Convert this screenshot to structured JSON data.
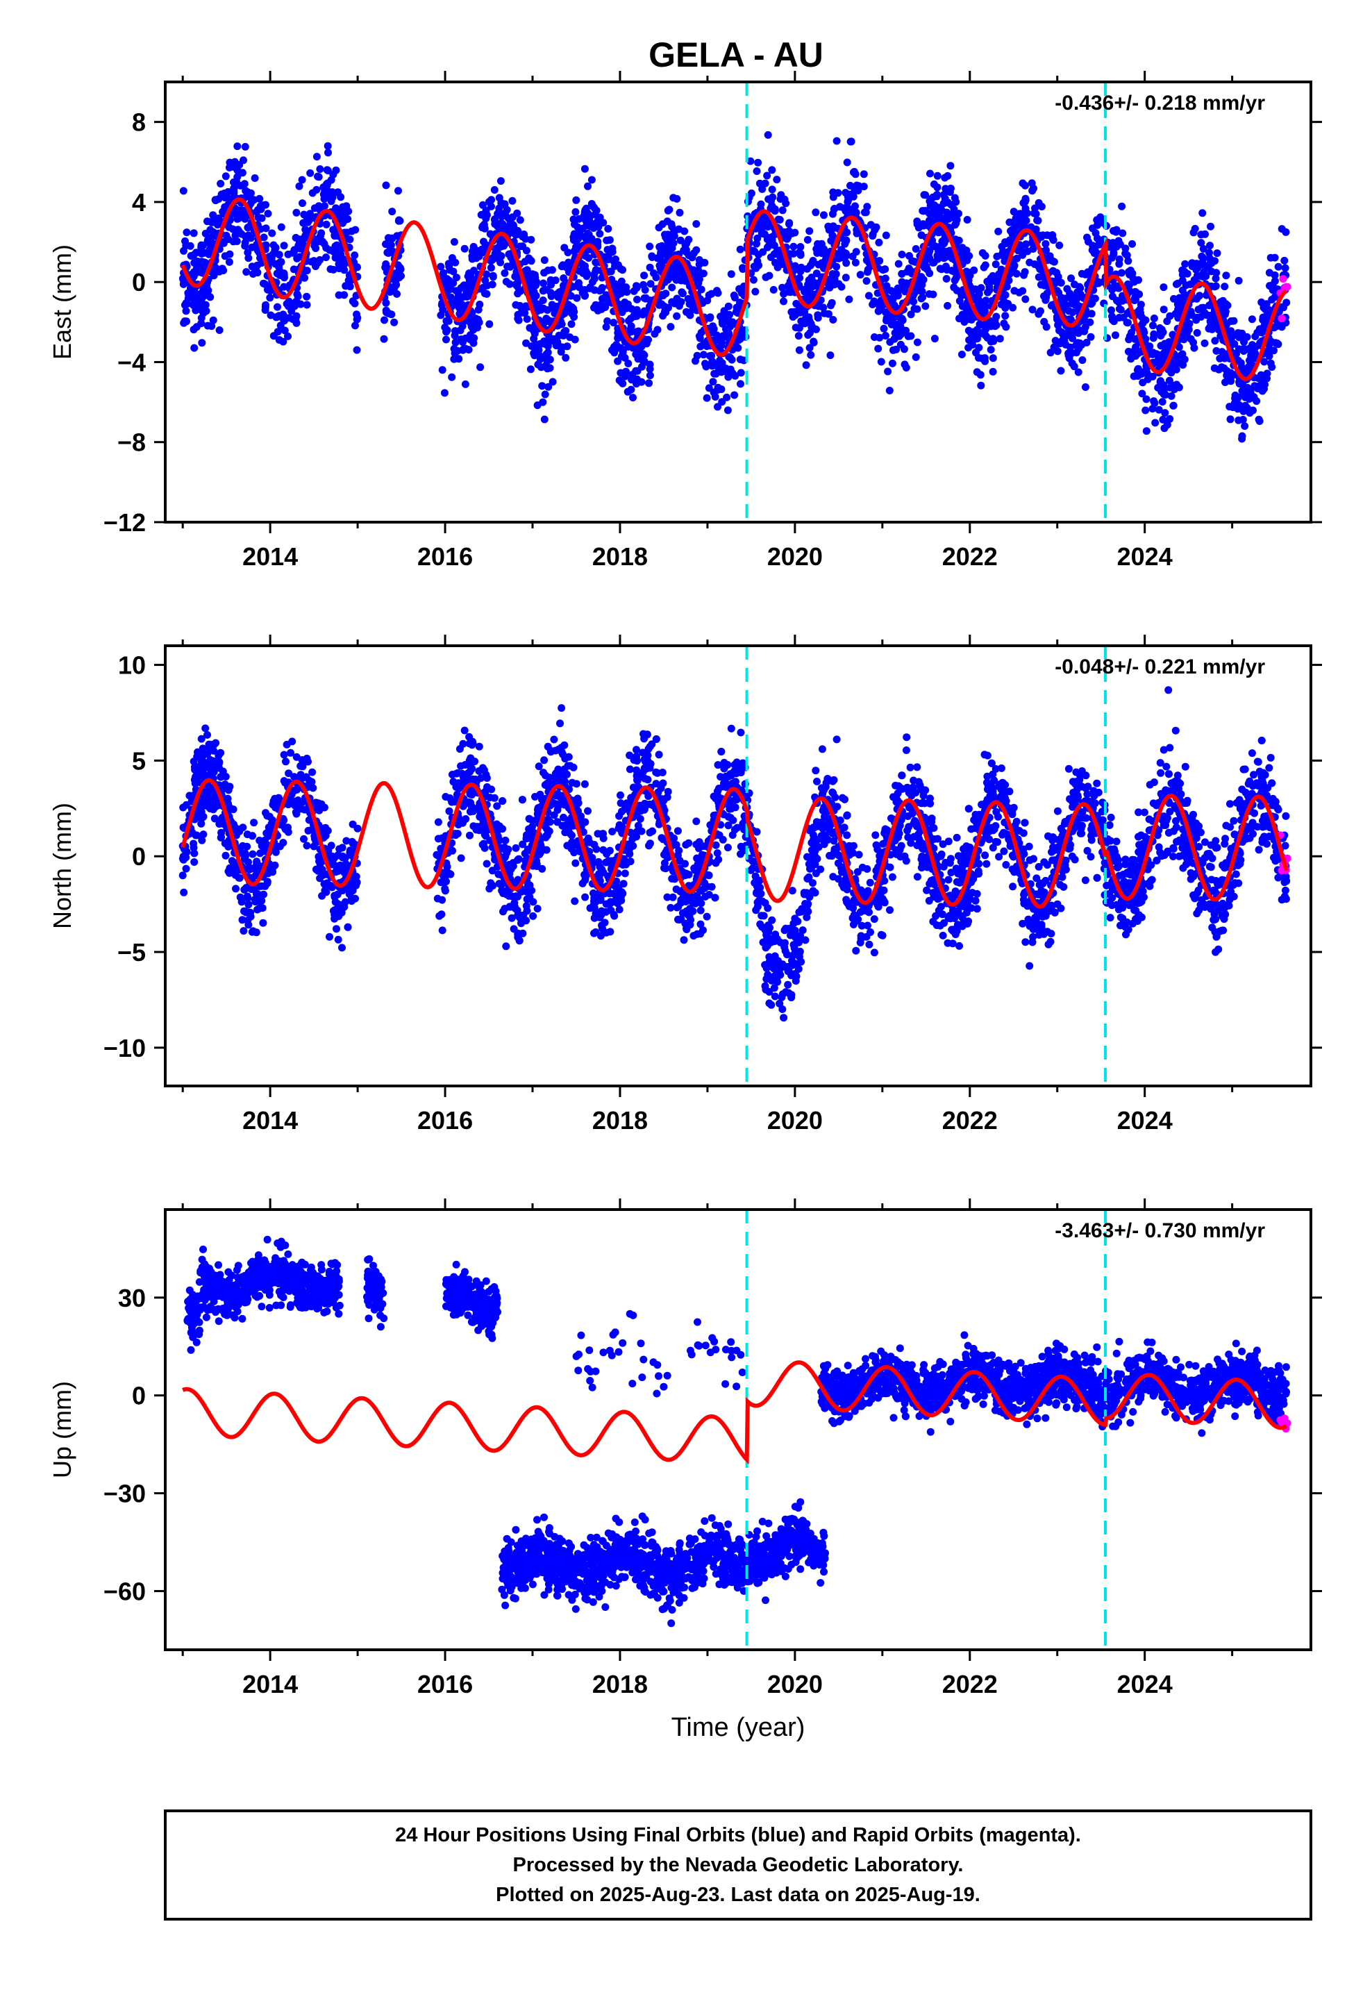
{
  "title": "GELA - AU",
  "footer": {
    "lines": [
      "24 Hour Positions Using Final Orbits (blue) and Rapid Orbits (magenta).",
      "Processed by the Nevada Geodetic Laboratory.",
      "Plotted on 2025-Aug-23. Last data on 2025-Aug-19."
    ]
  },
  "colors": {
    "final_orbits": "#0000ff",
    "rapid_orbits": "#ff00ff",
    "model": "#ff0000",
    "offsets": "#00e5e5",
    "axes": "#000000"
  },
  "chart_data": [
    {
      "type": "scatter",
      "component": "East",
      "ylabel": "East (mm)",
      "xlabel": "",
      "rate_label": "-0.436+/- 0.218 mm/yr",
      "xlim": [
        2012.8,
        2025.9
      ],
      "ylim": [
        -12,
        10
      ],
      "xticks": [
        2014,
        2016,
        2018,
        2020,
        2022,
        2024
      ],
      "yticks": [
        -12,
        -8,
        -4,
        0,
        4,
        8
      ],
      "offsets": [
        2019.45,
        2023.55
      ],
      "data_span": [
        2013.0,
        2025.62
      ],
      "rapid_span": [
        2025.55,
        2025.63
      ],
      "gaps": [
        [
          2015.0,
          2015.3
        ],
        [
          2015.5,
          2015.95
        ]
      ],
      "model": {
        "annual_amp": 2.3,
        "annual_phase": 2013.65,
        "segments": [
          {
            "x0": 2013.0,
            "x1": 2019.45,
            "v0": 2.2,
            "v1": -1.5
          },
          {
            "x0": 2019.45,
            "x1": 2023.55,
            "v0": 1.3,
            "v1": 0.0
          },
          {
            "x0": 2023.55,
            "x1": 2025.62,
            "v0": -2.0,
            "v1": -2.7
          }
        ]
      },
      "scatter_sd": 1.4
    },
    {
      "type": "scatter",
      "component": "North",
      "ylabel": "North (mm)",
      "xlabel": "",
      "rate_label": "-0.048+/- 0.221 mm/yr",
      "xlim": [
        2012.8,
        2025.9
      ],
      "ylim": [
        -12,
        11
      ],
      "xticks": [
        2014,
        2016,
        2018,
        2020,
        2022,
        2024
      ],
      "yticks": [
        -10,
        -5,
        0,
        5,
        10
      ],
      "offsets": [
        2019.45,
        2023.55
      ],
      "data_span": [
        2013.0,
        2025.62
      ],
      "rapid_span": [
        2025.55,
        2025.63
      ],
      "gaps": [
        [
          2015.0,
          2015.9
        ]
      ],
      "model": {
        "annual_amp": 2.7,
        "annual_phase": 2013.3,
        "segments": [
          {
            "x0": 2013.0,
            "x1": 2019.45,
            "v0": 1.3,
            "v1": 0.8
          },
          {
            "x0": 2019.45,
            "x1": 2023.55,
            "v0": 0.4,
            "v1": 0.0
          },
          {
            "x0": 2023.55,
            "x1": 2025.62,
            "v0": 0.5,
            "v1": 0.4
          }
        ]
      },
      "dip": {
        "x0": 2019.5,
        "x1": 2020.4,
        "depth": -4.5
      },
      "scatter_sd": 1.3
    },
    {
      "type": "scatter",
      "component": "Up",
      "ylabel": "Up (mm)",
      "xlabel": "Time (year)",
      "rate_label": "-3.463+/- 0.730 mm/yr",
      "xlim": [
        2012.8,
        2025.9
      ],
      "ylim": [
        -78,
        57
      ],
      "xticks": [
        2014,
        2016,
        2018,
        2020,
        2022,
        2024
      ],
      "yticks": [
        -60,
        -30,
        0,
        30
      ],
      "offsets": [
        2019.45,
        2023.55
      ],
      "data_span": [
        2013.0,
        2025.62
      ],
      "rapid_span": [
        2025.55,
        2025.63
      ],
      "gaps": [
        [
          2015.0,
          2015.1
        ],
        [
          2015.5,
          2015.95
        ],
        [
          2016.6,
          2016.65
        ]
      ],
      "model": {
        "annual_amp": 7.0,
        "annual_phase": 2013.05,
        "segments": [
          {
            "x0": 2013.0,
            "x1": 2019.45,
            "v0": -5.0,
            "v1": -14.0
          },
          {
            "x0": 2019.45,
            "x1": 2023.55,
            "v0": 4.0,
            "v1": -2.0
          },
          {
            "x0": 2023.55,
            "x1": 2025.62,
            "v0": 0.0,
            "v1": -3.0
          }
        ]
      },
      "clusters": [
        {
          "x0": 2013.05,
          "x1": 2013.2,
          "level": 22,
          "sd": 4
        },
        {
          "x0": 2013.2,
          "x1": 2014.8,
          "level": 34,
          "sd": 3.5
        },
        {
          "x0": 2015.1,
          "x1": 2015.3,
          "level": 30,
          "sd": 4
        },
        {
          "x0": 2016.0,
          "x1": 2016.6,
          "level": 29,
          "sd": 3.5
        },
        {
          "x0": 2016.65,
          "x1": 2019.45,
          "level": -52,
          "sd": 4.5
        },
        {
          "x0": 2019.45,
          "x1": 2020.35,
          "level": -47,
          "sd": 4
        },
        {
          "x0": 2020.3,
          "x1": 2025.62,
          "level": 3,
          "sd": 4
        },
        {
          "x0": 2017.5,
          "x1": 2019.4,
          "level": 12,
          "sd": 4,
          "sparse": true
        }
      ],
      "scatter_sd": 4
    }
  ]
}
